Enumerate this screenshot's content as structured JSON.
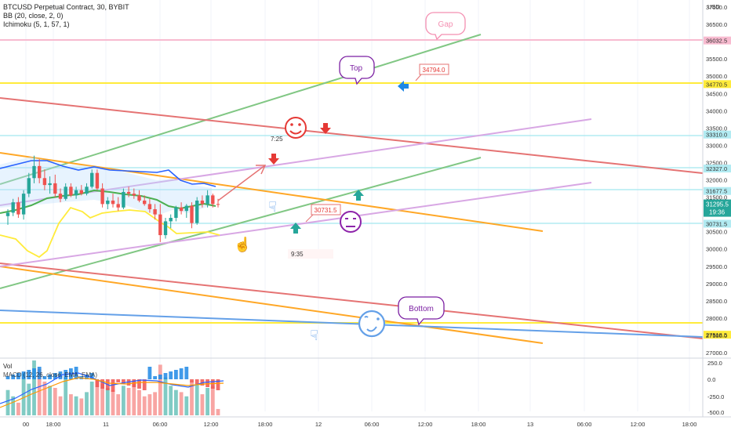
{
  "header": {
    "symbol_line": "BTCUSD Perpetual Contract, 30, BYBIT",
    "indicator_bb": "BB (20, close, 2, 0)",
    "indicator_ichimoku": "Ichimoku (5, 1, 57, 1)"
  },
  "volume_pane": {
    "label": "Vol",
    "macd_label": "MACD (12, 26, close, EMA, EMA)",
    "y_ticks": [
      "250.0",
      "0.0",
      "-250.0",
      "-500.0"
    ]
  },
  "chart_data": {
    "type": "candlestick",
    "currency": "USD",
    "price_range": [
      27000,
      37000
    ],
    "y_ticks": [
      "37000.0",
      "36500.0",
      "36032.5",
      "35500.0",
      "35000.0",
      "34770.5",
      "34500.0",
      "34000.0",
      "33500.0",
      "33310.0",
      "33000.0",
      "32500.0",
      "32327.0",
      "32000.0",
      "31677.5",
      "31500.0",
      "31295.5",
      "30731.5",
      "30500.0",
      "30000.0",
      "29500.0",
      "29000.0",
      "28500.0",
      "28000.0",
      "27518.5",
      "27500.0",
      "27000.0"
    ],
    "x_ticks": [
      "00",
      "18:00",
      "11",
      "06:00",
      "12:00",
      "18:00",
      "12",
      "06:00",
      "12:00",
      "18:00",
      "13",
      "06:00",
      "12:00",
      "18:00"
    ],
    "current_price": "31295.5",
    "countdown": "19:36",
    "level_labels": {
      "gap": "36032.5",
      "top": "34770.5",
      "upper": "33310.0",
      "mid1": "32327.0",
      "mid2": "31677.5",
      "low": "30731.5",
      "bottom": "27518.5"
    },
    "callouts": {
      "gap": "Gap",
      "top": "Top",
      "bottom": "Bottom",
      "price_a": "34794.0",
      "price_b": "30731.5",
      "time_a": "7:25",
      "time_b": "9:35"
    },
    "candles": [
      {
        "o": 30950,
        "h": 31150,
        "l": 30700,
        "c": 31050
      },
      {
        "o": 31050,
        "h": 31450,
        "l": 30950,
        "c": 31350
      },
      {
        "o": 31350,
        "h": 31500,
        "l": 30900,
        "c": 31000
      },
      {
        "o": 31000,
        "h": 31700,
        "l": 30850,
        "c": 31600
      },
      {
        "o": 31600,
        "h": 32200,
        "l": 31500,
        "c": 32050
      },
      {
        "o": 32050,
        "h": 32700,
        "l": 31900,
        "c": 32400
      },
      {
        "o": 32400,
        "h": 32600,
        "l": 31900,
        "c": 32050
      },
      {
        "o": 32050,
        "h": 32300,
        "l": 31700,
        "c": 31850
      },
      {
        "o": 31850,
        "h": 32100,
        "l": 31600,
        "c": 31900
      },
      {
        "o": 31900,
        "h": 32150,
        "l": 31500,
        "c": 31600
      },
      {
        "o": 31600,
        "h": 31750,
        "l": 31350,
        "c": 31450
      },
      {
        "o": 31450,
        "h": 31900,
        "l": 31400,
        "c": 31800
      },
      {
        "o": 31800,
        "h": 31900,
        "l": 31500,
        "c": 31550
      },
      {
        "o": 31550,
        "h": 31800,
        "l": 31450,
        "c": 31700
      },
      {
        "o": 31700,
        "h": 31850,
        "l": 31550,
        "c": 31600
      },
      {
        "o": 31600,
        "h": 31900,
        "l": 31550,
        "c": 31800
      },
      {
        "o": 31800,
        "h": 32300,
        "l": 31750,
        "c": 32200
      },
      {
        "o": 32200,
        "h": 32300,
        "l": 31700,
        "c": 31750
      },
      {
        "o": 31750,
        "h": 31900,
        "l": 31200,
        "c": 31300
      },
      {
        "o": 31300,
        "h": 31500,
        "l": 31150,
        "c": 31400
      },
      {
        "o": 31400,
        "h": 31600,
        "l": 31200,
        "c": 31300
      },
      {
        "o": 31300,
        "h": 31500,
        "l": 31100,
        "c": 31200
      },
      {
        "o": 31200,
        "h": 31750,
        "l": 31150,
        "c": 31650
      },
      {
        "o": 31650,
        "h": 31800,
        "l": 31500,
        "c": 31600
      },
      {
        "o": 31600,
        "h": 31750,
        "l": 31450,
        "c": 31550
      },
      {
        "o": 31550,
        "h": 31700,
        "l": 31350,
        "c": 31400
      },
      {
        "o": 31400,
        "h": 31550,
        "l": 31250,
        "c": 31300
      },
      {
        "o": 31300,
        "h": 31450,
        "l": 31050,
        "c": 31150
      },
      {
        "o": 31150,
        "h": 31300,
        "l": 30850,
        "c": 31000
      },
      {
        "o": 31000,
        "h": 31300,
        "l": 30200,
        "c": 30400
      },
      {
        "o": 30400,
        "h": 30900,
        "l": 30300,
        "c": 30800
      },
      {
        "o": 30800,
        "h": 31000,
        "l": 30600,
        "c": 30900
      },
      {
        "o": 30900,
        "h": 31250,
        "l": 30800,
        "c": 31200
      },
      {
        "o": 31200,
        "h": 31350,
        "l": 31000,
        "c": 31100
      },
      {
        "o": 31100,
        "h": 31300,
        "l": 30900,
        "c": 31250
      },
      {
        "o": 31250,
        "h": 31350,
        "l": 30600,
        "c": 30750
      },
      {
        "o": 30750,
        "h": 31500,
        "l": 30700,
        "c": 31400
      },
      {
        "o": 31400,
        "h": 31550,
        "l": 31200,
        "c": 31300
      },
      {
        "o": 31300,
        "h": 31700,
        "l": 31200,
        "c": 31550
      },
      {
        "o": 31550,
        "h": 31600,
        "l": 31200,
        "c": 31300
      },
      {
        "o": 31300,
        "h": 31450,
        "l": 31200,
        "c": 31296
      }
    ],
    "volume": [
      120,
      90,
      60,
      200,
      150,
      260,
      220,
      160,
      140,
      130,
      90,
      180,
      100,
      90,
      80,
      110,
      160,
      170,
      150,
      130,
      120,
      100,
      140,
      130,
      160,
      120,
      90,
      100,
      110,
      240,
      180,
      140,
      120,
      110,
      90,
      160,
      150,
      100,
      130,
      140,
      30
    ]
  },
  "colors": {
    "up": "#26a69a",
    "down": "#ef5350",
    "bb_upper": "#2962ff",
    "bb_basis": "#4caf50",
    "lagging": "#ffeb3b",
    "horizontal_yellow": "#ffeb3b",
    "horizontal_teal": "#b2ebf2",
    "horizontal_pink": "#f8bbd0",
    "trend_green": "#81c784",
    "trend_red": "#e57373",
    "trend_orange": "#ffa726",
    "trend_violet": "#d8a7e4",
    "trend_blue": "#64a0e8"
  }
}
